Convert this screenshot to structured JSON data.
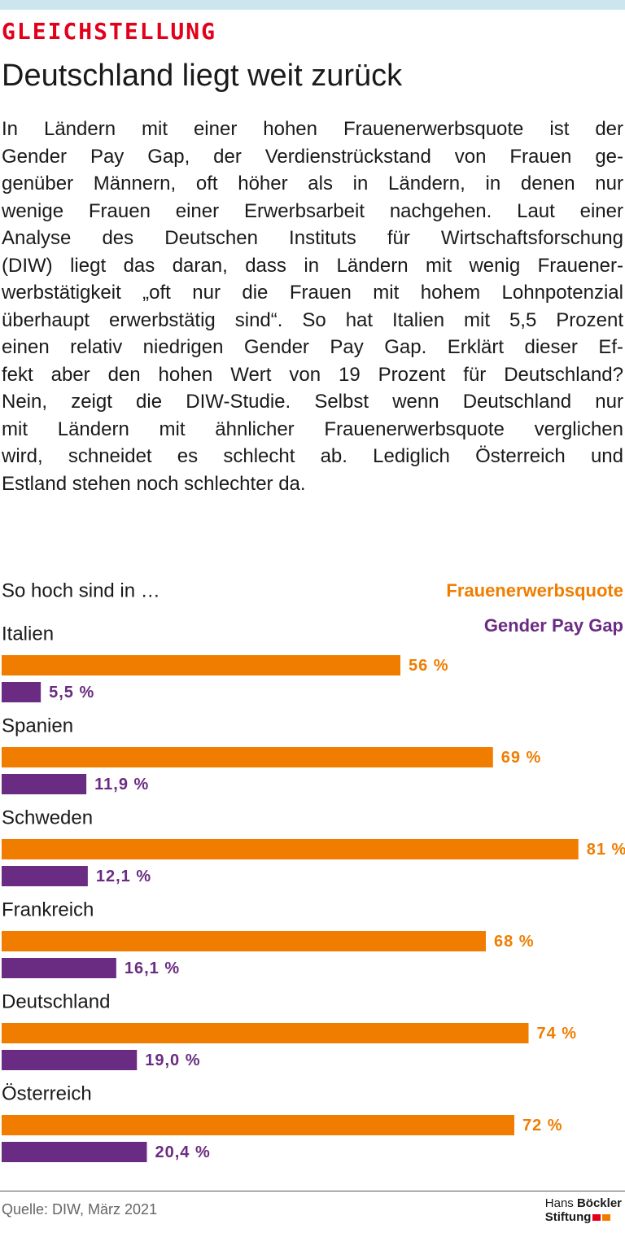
{
  "header": {
    "kicker": "GLEICHSTELLUNG",
    "title": "Deutschland liegt weit zurück"
  },
  "paragraph": {
    "lines": [
      "In Ländern mit einer hohen Frauenerwerbsquote ist der",
      "Gender Pay Gap, der Verdienstrückstand von Frauen ge-",
      "genüber Männern, oft höher als in Ländern, in denen nur",
      "wenige Frauen einer Erwerbsarbeit nachgehen. Laut einer",
      "Analyse des Deutschen Instituts für Wirtschaftsforschung",
      "(DIW) liegt das daran, dass in Ländern mit wenig Frauener-",
      "werbstätigkeit „oft nur die Frauen mit hohem Lohnpotenzial",
      "überhaupt erwerbstätig sind“. So hat Italien mit 5,5 Prozent",
      "einen relativ niedrigen Gender Pay Gap. Erklärt dieser Ef-",
      "fekt aber den hohen Wert von 19 Prozent für Deutschland?",
      "Nein, zeigt die DIW-Studie. Selbst wenn Deutschland nur",
      "mit Ländern mit ähnlicher Frauenerwerbsquote verglichen",
      "wird, schneidet es schlecht ab. Lediglich Österreich und",
      "Estland stehen noch schlechter da."
    ]
  },
  "chart_data": {
    "type": "bar",
    "orientation": "horizontal",
    "subtitle": "So hoch sind in …",
    "categories": [
      "Italien",
      "Spanien",
      "Schweden",
      "Frankreich",
      "Deutschland",
      "Österreich"
    ],
    "series": [
      {
        "name": "Frauenerwerbsquote",
        "color": "#f07d00",
        "values": [
          56,
          69,
          81,
          68,
          74,
          72
        ],
        "value_labels": [
          "56 %",
          "69 %",
          "81 %",
          "68 %",
          "74 %",
          "72 %"
        ]
      },
      {
        "name": "Gender Pay Gap",
        "color": "#6a2c82",
        "values": [
          5.5,
          11.9,
          12.1,
          16.1,
          19.0,
          20.4
        ],
        "value_labels": [
          "5,5 %",
          "11,9 %",
          "12,1 %",
          "16,1 %",
          "19,0 %",
          "20,4 %"
        ]
      }
    ]
  },
  "footer": {
    "source": "Quelle: DIW, März 2021",
    "logo": {
      "first": "Hans",
      "second": "Böckler",
      "third": "Stiftung"
    }
  }
}
